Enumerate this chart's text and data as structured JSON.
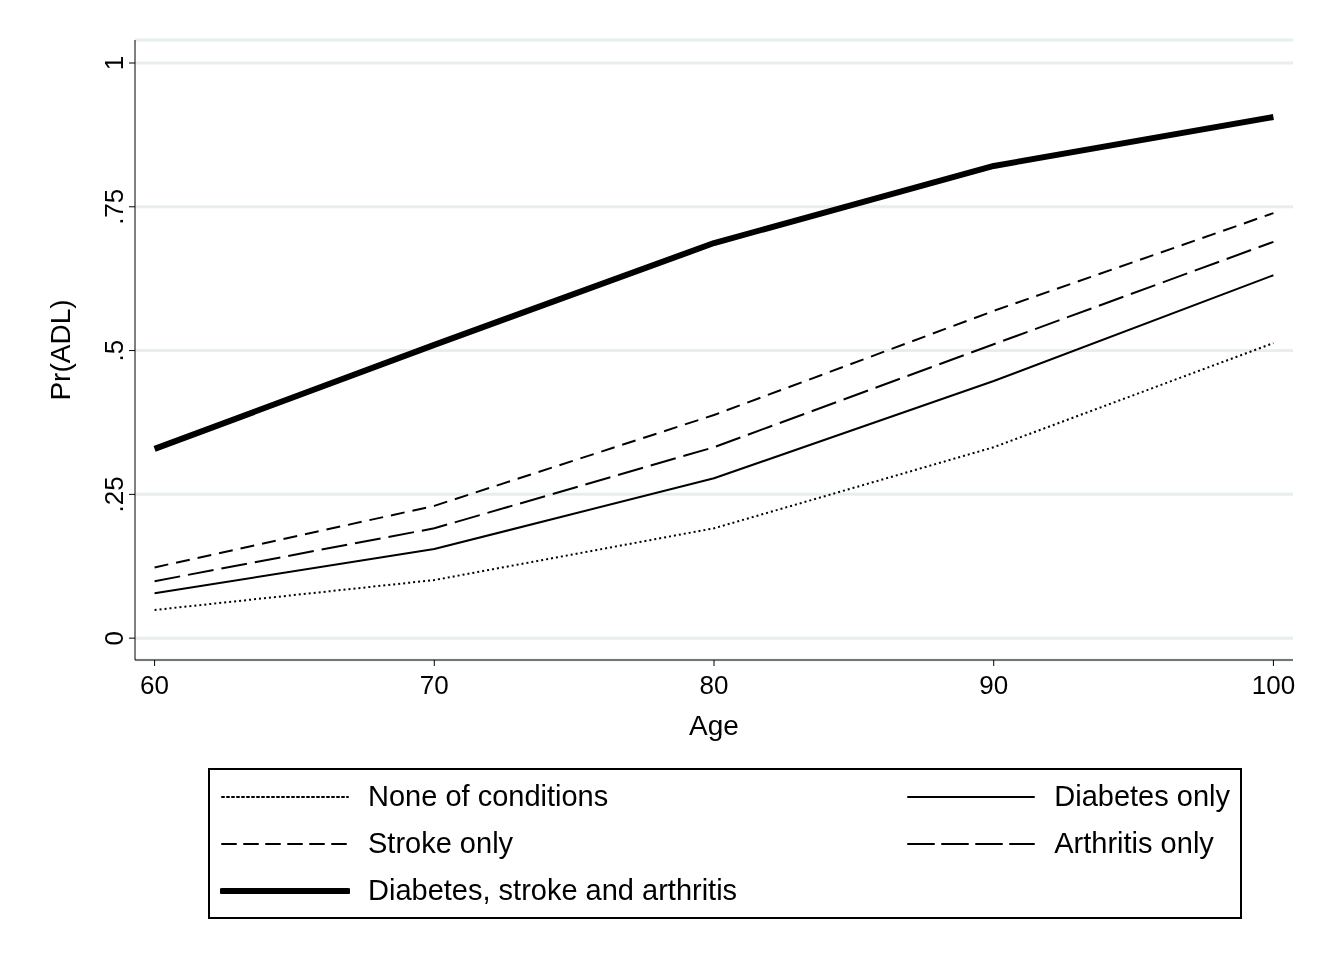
{
  "chart_data": {
    "type": "line",
    "xlabel": "Age",
    "ylabel": "Pr(ADL)",
    "x": [
      60,
      70,
      80,
      90,
      100
    ],
    "series": [
      {
        "name": "None of conditions",
        "color": "#000000",
        "line_style": "dotted",
        "values": [
          0.049,
          0.101,
          0.191,
          0.332,
          0.513
        ]
      },
      {
        "name": "Diabetes only",
        "color": "#000000",
        "line_style": "solid",
        "values": [
          0.078,
          0.155,
          0.278,
          0.447,
          0.631
        ]
      },
      {
        "name": "Stroke only",
        "color": "#000000",
        "line_style": "dashed",
        "values": [
          0.123,
          0.23,
          0.388,
          0.569,
          0.739
        ]
      },
      {
        "name": "Arthritis only",
        "color": "#000000",
        "line_style": "dashed",
        "values": [
          0.099,
          0.191,
          0.332,
          0.511,
          0.689
        ]
      },
      {
        "name": "Diabetes, stroke and arthritis",
        "color": "#000000",
        "line_style": "solid",
        "values": [
          0.329,
          0.51,
          0.687,
          0.821,
          0.906
        ]
      }
    ],
    "xlim": [
      59.3,
      100.7
    ],
    "xticks": [
      60,
      70,
      80,
      90,
      100
    ],
    "ylim": [
      -0.038,
      1.04
    ],
    "yticks": [
      {
        "value": 0,
        "label": "0"
      },
      {
        "value": 0.25,
        "label": ".25"
      },
      {
        "value": 0.5,
        "label": ".5"
      },
      {
        "value": 0.75,
        "label": ".75"
      },
      {
        "value": 1,
        "label": "1"
      }
    ],
    "grid": "y",
    "legend": "bottom"
  }
}
